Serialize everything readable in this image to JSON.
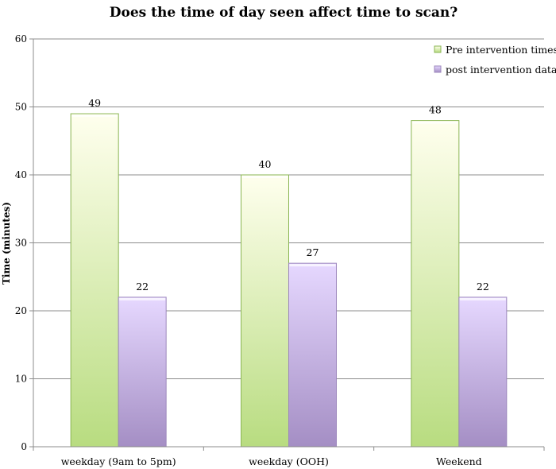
{
  "chart_data": {
    "type": "bar",
    "title": "Does the time of day seen affect time to scan?",
    "xlabel": "",
    "ylabel": "Time (minutes)",
    "ylim": [
      0,
      60
    ],
    "yticks": [
      0,
      10,
      20,
      30,
      40,
      50,
      60
    ],
    "grid": true,
    "legend_position": "top-right",
    "categories": [
      "weekday (9am to 5pm)",
      "weekday (OOH)",
      "Weekend"
    ],
    "series": [
      {
        "name": "Pre intervention times",
        "values": [
          49,
          40,
          48
        ],
        "color_top": "#ffffee",
        "color_bottom": "#b8dc80",
        "edge": "#8ab553"
      },
      {
        "name": "post intervention data",
        "values": [
          22,
          27,
          22
        ],
        "color_top": "#e6d8ff",
        "color_bottom": "#a48ec4",
        "edge": "#9d88bd"
      }
    ]
  }
}
